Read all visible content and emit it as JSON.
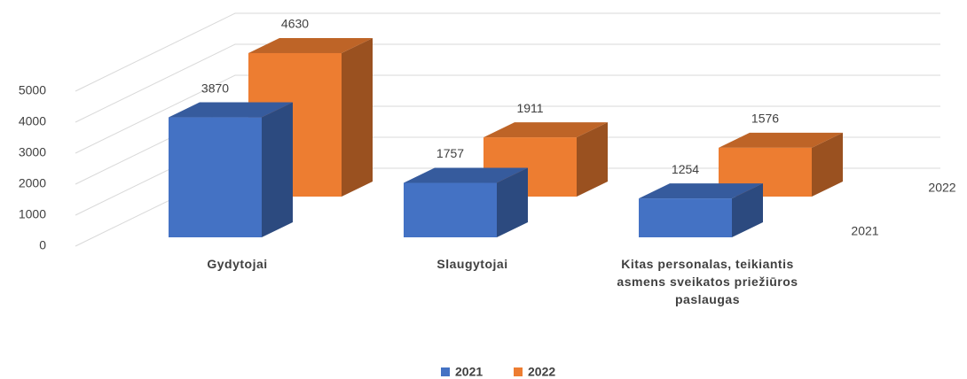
{
  "chart_data": {
    "type": "bar3d",
    "categories": [
      "Gydytojai",
      "Slaugytojai",
      "Kitas personalas, teikiantis asmens sveikatos priežiūros paslaugas"
    ],
    "series": [
      {
        "name": "2021",
        "color": "#4472c4",
        "values": [
          3870,
          1757,
          1254
        ]
      },
      {
        "name": "2022",
        "color": "#ed7d31",
        "values": [
          4630,
          1911,
          1576
        ]
      }
    ],
    "ylim": [
      0,
      5000
    ],
    "yticks": [
      0,
      1000,
      2000,
      3000,
      4000,
      5000
    ],
    "grid": true,
    "legend": "bottom"
  }
}
